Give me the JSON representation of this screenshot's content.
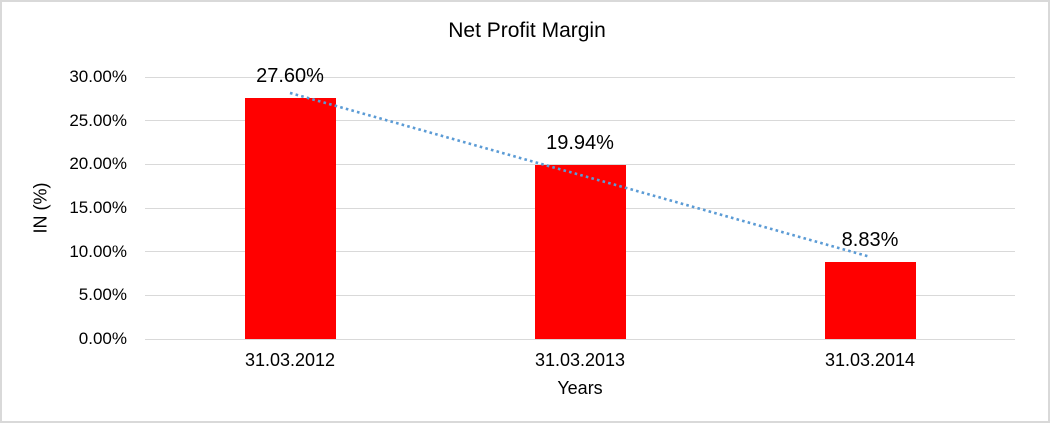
{
  "chart_data": {
    "type": "bar",
    "title": "Net Profit Margin",
    "xlabel": "Years",
    "ylabel": "IN (%)",
    "categories": [
      "31.03.2012",
      "31.03.2013",
      "31.03.2014"
    ],
    "values": [
      27.6,
      19.94,
      8.83
    ],
    "data_labels": [
      "27.60%",
      "19.94%",
      "8.83%"
    ],
    "y_ticks": [
      "30.00%",
      "25.00%",
      "20.00%",
      "15.00%",
      "10.00%",
      "5.00%",
      "0.00%"
    ],
    "ylim": [
      0,
      30
    ],
    "grid": true,
    "legend": "none",
    "bar_color": "#FF0000",
    "gridline_color": "#D9D9D9",
    "frame_border_color": "#D9D9D9",
    "text_color": "#000000",
    "trendline": {
      "type": "linear",
      "style": "dotted",
      "color": "#5B9BD5"
    }
  }
}
